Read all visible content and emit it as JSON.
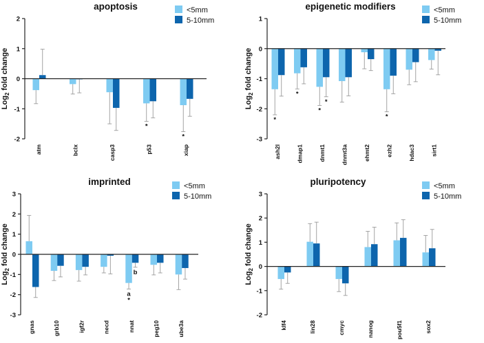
{
  "colors": {
    "light": "#7ecbf2",
    "dark": "#0d65ad",
    "axis": "#222222",
    "error": "#9a9a9a"
  },
  "legend": [
    "<5mm",
    "5-10mm"
  ],
  "ylabel_main": "Log",
  "ylabel_sub": "2",
  "ylabel_rest": " fold change",
  "chart_data": [
    {
      "id": "apoptosis",
      "type": "bar",
      "title": "apoptosis",
      "categories": [
        "atm",
        "bclx",
        "casp3",
        "p53",
        "xiap"
      ],
      "ylim": [
        -2,
        2
      ],
      "yticks": [
        "-2",
        "-1",
        "0",
        "1",
        "2"
      ],
      "ylabel": "Log2 fold change",
      "series": [
        {
          "name": "<5mm",
          "values": [
            -0.38,
            -0.18,
            -0.45,
            -0.82,
            -0.88
          ],
          "errors": [
            0.45,
            0.33,
            1.05,
            0.6,
            0.88
          ]
        },
        {
          "name": "5-10mm",
          "values": [
            0.12,
            -0.02,
            -0.97,
            -0.75,
            -0.67
          ],
          "errors": [
            0.86,
            0.45,
            0.75,
            0.55,
            0.58
          ]
        }
      ],
      "annotations": [
        {
          "category": "p53",
          "series": 0,
          "text": "*"
        },
        {
          "category": "xiap",
          "series": 0,
          "text": "*"
        }
      ]
    },
    {
      "id": "epigenetic",
      "type": "bar",
      "title": "epigenetic modifiers",
      "categories": [
        "ash2l",
        "dmap1",
        "dnmt1",
        "dnmt3a",
        "ehmt2",
        "ezh2",
        "hdac3",
        "sirt1"
      ],
      "ylim": [
        -3,
        1
      ],
      "yticks": [
        "-3",
        "-2",
        "-1",
        "0",
        "1"
      ],
      "ylabel": "Log2 fold change",
      "series": [
        {
          "name": "<5mm",
          "values": [
            -1.35,
            -0.82,
            -1.27,
            -1.08,
            -0.12,
            -1.35,
            -0.7,
            -0.38
          ],
          "errors": [
            0.85,
            0.52,
            0.62,
            0.7,
            0.55,
            0.75,
            0.5,
            0.3
          ]
        },
        {
          "name": "5-10mm",
          "values": [
            -0.88,
            -0.62,
            -0.95,
            -0.95,
            -0.35,
            -0.9,
            -0.45,
            -0.07
          ],
          "errors": [
            0.7,
            0.55,
            0.65,
            0.62,
            0.38,
            0.6,
            0.65,
            0.8
          ]
        }
      ],
      "annotations": [
        {
          "category": "ash2l",
          "series": 0,
          "text": "*"
        },
        {
          "category": "dmap1",
          "series": 0,
          "text": "*"
        },
        {
          "category": "dnmt1",
          "series": 0,
          "text": "*"
        },
        {
          "category": "dnmt1",
          "series": 1,
          "text": "*"
        },
        {
          "category": "ezh2",
          "series": 0,
          "text": "*"
        }
      ]
    },
    {
      "id": "imprinted",
      "type": "bar",
      "title": "imprinted",
      "categories": [
        "gnas",
        "grb10",
        "igf2r",
        "necd",
        "nnat",
        "peg10",
        "ube3a"
      ],
      "ylim": [
        -3,
        3
      ],
      "yticks": [
        "-3",
        "-2",
        "-1",
        "0",
        "1",
        "2",
        "3"
      ],
      "ylabel": "Log2 fold change",
      "series": [
        {
          "name": "<5mm",
          "values": [
            0.65,
            -0.82,
            -0.78,
            -0.62,
            -1.42,
            -0.52,
            -1.0
          ],
          "errors": [
            1.28,
            0.48,
            0.55,
            0.3,
            0.3,
            0.5,
            0.75
          ]
        },
        {
          "name": "5-10mm",
          "values": [
            -1.62,
            -0.57,
            -0.62,
            -0.07,
            -0.42,
            -0.42,
            -0.68
          ],
          "errors": [
            0.52,
            0.55,
            0.4,
            0.9,
            0.22,
            0.5,
            0.55
          ]
        }
      ],
      "annotations": [
        {
          "category": "nnat",
          "series": 0,
          "text": "a"
        },
        {
          "category": "nnat",
          "series": 0,
          "text": "*"
        },
        {
          "category": "nnat",
          "series": 1,
          "text": "b"
        }
      ]
    },
    {
      "id": "pluripotency",
      "type": "bar",
      "title": "pluripotency",
      "categories": [
        "klf4",
        "lin28",
        "cmyc",
        "nanog",
        "pou5f1",
        "sox2"
      ],
      "ylim": [
        -2,
        3
      ],
      "yticks": [
        "-2",
        "-1",
        "0",
        "1",
        "2",
        "3"
      ],
      "ylabel": "Log2 fold change",
      "series": [
        {
          "name": "<5mm",
          "values": [
            -0.52,
            1.02,
            -0.52,
            0.8,
            1.08,
            0.58
          ],
          "errors": [
            0.42,
            0.75,
            0.52,
            0.65,
            0.72,
            0.7
          ]
        },
        {
          "name": "5-10mm",
          "values": [
            -0.25,
            0.95,
            -0.7,
            0.92,
            1.18,
            0.75
          ],
          "errors": [
            0.45,
            0.88,
            0.5,
            0.7,
            0.75,
            0.78
          ]
        }
      ],
      "annotations": []
    }
  ]
}
